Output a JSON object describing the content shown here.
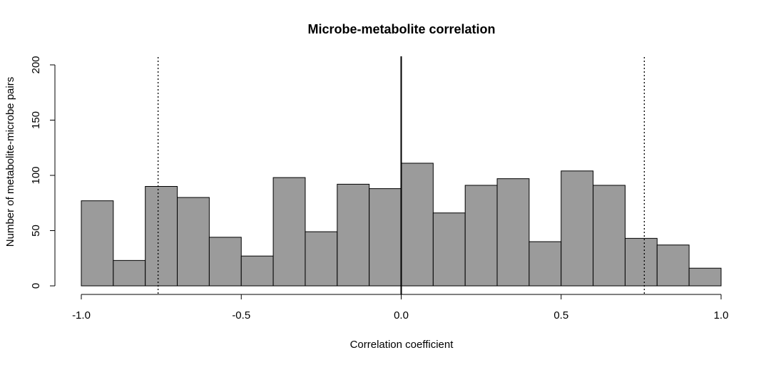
{
  "chart_data": {
    "type": "bar",
    "title": "Microbe-metabolite correlation",
    "xlabel": "Correlation coefficient",
    "ylabel": "Number of metabolite-microbe pairs",
    "xlim": [
      -1.0,
      1.0
    ],
    "ylim": [
      0,
      200
    ],
    "x_ticks": [
      -1.0,
      -0.5,
      0.0,
      0.5,
      1.0
    ],
    "x_tick_labels": [
      "-1.0",
      "-0.5",
      "0.0",
      "0.5",
      "1.0"
    ],
    "y_ticks": [
      0,
      50,
      100,
      150,
      200
    ],
    "y_tick_labels": [
      "0",
      "50",
      "100",
      "150",
      "200"
    ],
    "bin_edges": [
      -1.0,
      -0.9,
      -0.8,
      -0.7,
      -0.6,
      -0.5,
      -0.4,
      -0.3,
      -0.2,
      -0.1,
      0.0,
      0.1,
      0.2,
      0.3,
      0.4,
      0.5,
      0.6,
      0.7,
      0.8,
      0.9,
      1.0
    ],
    "values": [
      77,
      23,
      90,
      80,
      44,
      27,
      98,
      49,
      92,
      88,
      111,
      66,
      91,
      97,
      40,
      104,
      91,
      43,
      37,
      16
    ],
    "reference_lines": [
      {
        "x": -0.76,
        "style": "dotted"
      },
      {
        "x": 0.0,
        "style": "solid"
      },
      {
        "x": 0.76,
        "style": "dotted"
      }
    ],
    "grid": false,
    "bar_color": "#9b9b9b"
  }
}
